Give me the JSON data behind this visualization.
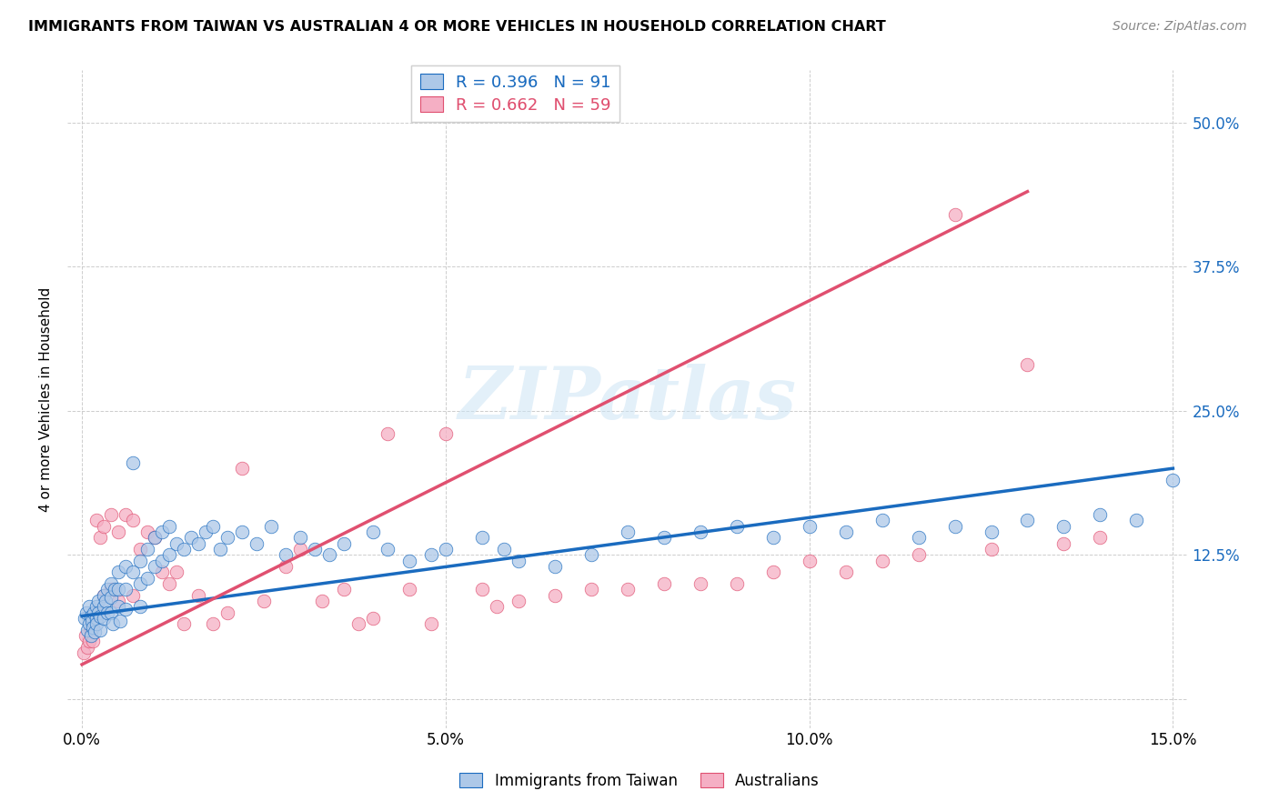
{
  "title": "IMMIGRANTS FROM TAIWAN VS AUSTRALIAN 4 OR MORE VEHICLES IN HOUSEHOLD CORRELATION CHART",
  "source": "Source: ZipAtlas.com",
  "ylabel": "4 or more Vehicles in Household",
  "xlim": [
    -0.002,
    0.152
  ],
  "ylim": [
    -0.025,
    0.545
  ],
  "xticks": [
    0.0,
    0.05,
    0.1,
    0.15
  ],
  "xticklabels": [
    "0.0%",
    "5.0%",
    "10.0%",
    "15.0%"
  ],
  "yticks": [
    0.0,
    0.125,
    0.25,
    0.375,
    0.5
  ],
  "yticklabels": [
    "",
    "12.5%",
    "25.0%",
    "37.5%",
    "50.0%"
  ],
  "taiwan_color": "#adc8e8",
  "aus_color": "#f5afc4",
  "taiwan_line_color": "#1a6bbf",
  "aus_line_color": "#e05070",
  "taiwan_R": 0.396,
  "taiwan_N": 91,
  "aus_R": 0.662,
  "aus_N": 59,
  "watermark": "ZIPatlas",
  "background_color": "#ffffff",
  "taiwan_scatter_x": [
    0.0004,
    0.0006,
    0.0008,
    0.001,
    0.001,
    0.0012,
    0.0012,
    0.0014,
    0.0015,
    0.0016,
    0.0018,
    0.002,
    0.002,
    0.002,
    0.0022,
    0.0022,
    0.0025,
    0.0025,
    0.003,
    0.003,
    0.003,
    0.0032,
    0.0035,
    0.0035,
    0.004,
    0.004,
    0.004,
    0.0042,
    0.0045,
    0.005,
    0.005,
    0.005,
    0.0052,
    0.006,
    0.006,
    0.006,
    0.007,
    0.007,
    0.008,
    0.008,
    0.008,
    0.009,
    0.009,
    0.01,
    0.01,
    0.011,
    0.011,
    0.012,
    0.012,
    0.013,
    0.014,
    0.015,
    0.016,
    0.017,
    0.018,
    0.019,
    0.02,
    0.022,
    0.024,
    0.026,
    0.028,
    0.03,
    0.032,
    0.034,
    0.036,
    0.04,
    0.042,
    0.045,
    0.048,
    0.05,
    0.055,
    0.058,
    0.06,
    0.065,
    0.07,
    0.075,
    0.08,
    0.085,
    0.09,
    0.095,
    0.1,
    0.105,
    0.11,
    0.115,
    0.12,
    0.125,
    0.13,
    0.135,
    0.14,
    0.145,
    0.15
  ],
  "taiwan_scatter_y": [
    0.07,
    0.075,
    0.06,
    0.065,
    0.08,
    0.055,
    0.072,
    0.068,
    0.062,
    0.075,
    0.058,
    0.08,
    0.07,
    0.065,
    0.085,
    0.075,
    0.072,
    0.06,
    0.09,
    0.08,
    0.07,
    0.085,
    0.095,
    0.075,
    0.1,
    0.088,
    0.075,
    0.065,
    0.095,
    0.11,
    0.095,
    0.08,
    0.068,
    0.115,
    0.095,
    0.078,
    0.205,
    0.11,
    0.12,
    0.1,
    0.08,
    0.13,
    0.105,
    0.14,
    0.115,
    0.145,
    0.12,
    0.15,
    0.125,
    0.135,
    0.13,
    0.14,
    0.135,
    0.145,
    0.15,
    0.13,
    0.14,
    0.145,
    0.135,
    0.15,
    0.125,
    0.14,
    0.13,
    0.125,
    0.135,
    0.145,
    0.13,
    0.12,
    0.125,
    0.13,
    0.14,
    0.13,
    0.12,
    0.115,
    0.125,
    0.145,
    0.14,
    0.145,
    0.15,
    0.14,
    0.15,
    0.145,
    0.155,
    0.14,
    0.15,
    0.145,
    0.155,
    0.15,
    0.16,
    0.155,
    0.19
  ],
  "aus_scatter_x": [
    0.0003,
    0.0005,
    0.0008,
    0.001,
    0.0012,
    0.0015,
    0.002,
    0.002,
    0.0025,
    0.003,
    0.003,
    0.004,
    0.004,
    0.005,
    0.005,
    0.006,
    0.007,
    0.007,
    0.008,
    0.009,
    0.01,
    0.011,
    0.012,
    0.013,
    0.014,
    0.016,
    0.018,
    0.02,
    0.022,
    0.025,
    0.028,
    0.03,
    0.033,
    0.036,
    0.038,
    0.04,
    0.042,
    0.045,
    0.048,
    0.05,
    0.055,
    0.057,
    0.06,
    0.065,
    0.07,
    0.075,
    0.08,
    0.085,
    0.09,
    0.095,
    0.1,
    0.105,
    0.11,
    0.115,
    0.12,
    0.125,
    0.13,
    0.135,
    0.14
  ],
  "aus_scatter_y": [
    0.04,
    0.055,
    0.045,
    0.05,
    0.06,
    0.05,
    0.155,
    0.075,
    0.14,
    0.15,
    0.09,
    0.16,
    0.095,
    0.145,
    0.085,
    0.16,
    0.155,
    0.09,
    0.13,
    0.145,
    0.14,
    0.11,
    0.1,
    0.11,
    0.065,
    0.09,
    0.065,
    0.075,
    0.2,
    0.085,
    0.115,
    0.13,
    0.085,
    0.095,
    0.065,
    0.07,
    0.23,
    0.095,
    0.065,
    0.23,
    0.095,
    0.08,
    0.085,
    0.09,
    0.095,
    0.095,
    0.1,
    0.1,
    0.1,
    0.11,
    0.12,
    0.11,
    0.12,
    0.125,
    0.42,
    0.13,
    0.29,
    0.135,
    0.14
  ],
  "taiwan_trend_x0": 0.0,
  "taiwan_trend_x1": 0.15,
  "taiwan_trend_y0": 0.072,
  "taiwan_trend_y1": 0.2,
  "aus_trend_x0": 0.0,
  "aus_trend_x1": 0.13,
  "aus_trend_y0": 0.03,
  "aus_trend_y1": 0.44
}
